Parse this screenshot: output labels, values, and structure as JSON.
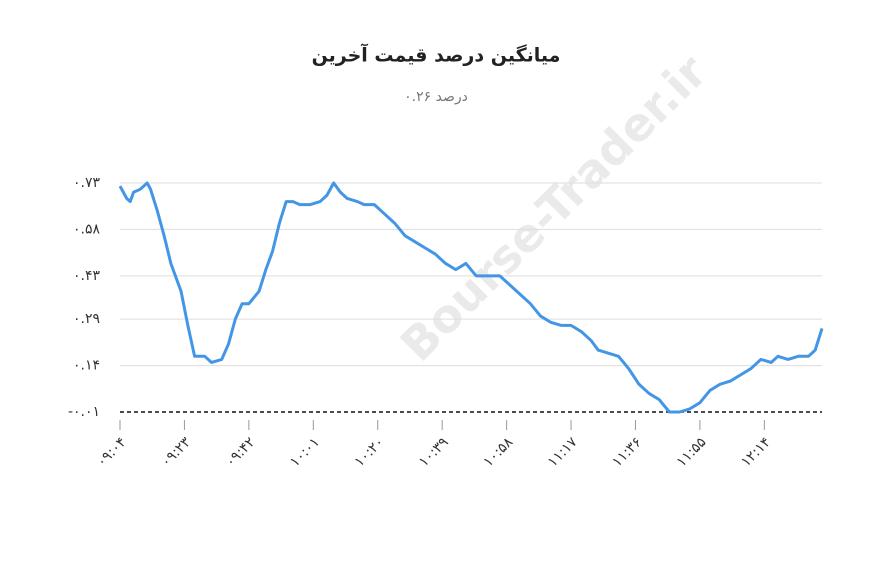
{
  "chart_data": {
    "type": "line",
    "title": "میانگین درصد قیمت آخرین",
    "subtitle": "درصد ۰.۲۶",
    "watermark": "Bourse-Trader.ir",
    "x": [
      544,
      546,
      547,
      548,
      550,
      552,
      553,
      555,
      557,
      559,
      562,
      564,
      566,
      569,
      571,
      574,
      576,
      578,
      580,
      582,
      585,
      587,
      589,
      591,
      593,
      595,
      597,
      600,
      603,
      605,
      607,
      609,
      611,
      614,
      616,
      619,
      622,
      625,
      628,
      631,
      634,
      637,
      640,
      643,
      646,
      649,
      653,
      656,
      659,
      662,
      665,
      668,
      671,
      674,
      677,
      680,
      683,
      685,
      688,
      691,
      694,
      697,
      700,
      703,
      706,
      709,
      712,
      715,
      718,
      721,
      724,
      727,
      730,
      733,
      736,
      738,
      741,
      744,
      747,
      749,
      751
    ],
    "series": [
      {
        "name": "میانگین درصد قیمت آخرین",
        "color": "#4396e6",
        "values": [
          0.72,
          0.68,
          0.67,
          0.7,
          0.71,
          0.73,
          0.71,
          0.64,
          0.56,
          0.47,
          0.38,
          0.27,
          0.17,
          0.17,
          0.15,
          0.16,
          0.21,
          0.29,
          0.34,
          0.34,
          0.38,
          0.45,
          0.51,
          0.6,
          0.67,
          0.67,
          0.66,
          0.66,
          0.67,
          0.69,
          0.73,
          0.7,
          0.68,
          0.67,
          0.66,
          0.66,
          0.63,
          0.6,
          0.56,
          0.54,
          0.52,
          0.5,
          0.47,
          0.45,
          0.47,
          0.43,
          0.43,
          0.43,
          0.4,
          0.37,
          0.34,
          0.3,
          0.28,
          0.27,
          0.27,
          0.25,
          0.22,
          0.19,
          0.18,
          0.17,
          0.13,
          0.08,
          0.05,
          0.03,
          -0.01,
          -0.01,
          0.0,
          0.02,
          0.06,
          0.08,
          0.09,
          0.11,
          0.13,
          0.16,
          0.15,
          0.17,
          0.16,
          0.17,
          0.17,
          0.19,
          0.26
        ]
      }
    ],
    "xlim": [
      544,
      751
    ],
    "xticks": [
      {
        "value": 544,
        "label": "۰۹:۰۴"
      },
      {
        "value": 563,
        "label": "۰۹:۲۳"
      },
      {
        "value": 582,
        "label": "۰۹:۴۲"
      },
      {
        "value": 601,
        "label": "۱۰:۰۱"
      },
      {
        "value": 620,
        "label": "۱۰:۲۰"
      },
      {
        "value": 639,
        "label": "۱۰:۳۹"
      },
      {
        "value": 658,
        "label": "۱۰:۵۸"
      },
      {
        "value": 677,
        "label": "۱۱:۱۷"
      },
      {
        "value": 696,
        "label": "۱۱:۳۶"
      },
      {
        "value": 715,
        "label": "۱۱:۵۵"
      },
      {
        "value": 734,
        "label": "۱۲:۱۴"
      }
    ],
    "ylim": [
      -0.01,
      0.73
    ],
    "yticks": [
      {
        "value": 0.73,
        "label": "۰.۷۳"
      },
      {
        "value": 0.58,
        "label": "۰.۵۸"
      },
      {
        "value": 0.43,
        "label": "۰.۴۳"
      },
      {
        "value": 0.29,
        "label": "۰.۲۹"
      },
      {
        "value": 0.14,
        "label": "۰.۱۴"
      },
      {
        "value": -0.01,
        "label": "-۰.۰۱"
      }
    ],
    "grid": true
  }
}
